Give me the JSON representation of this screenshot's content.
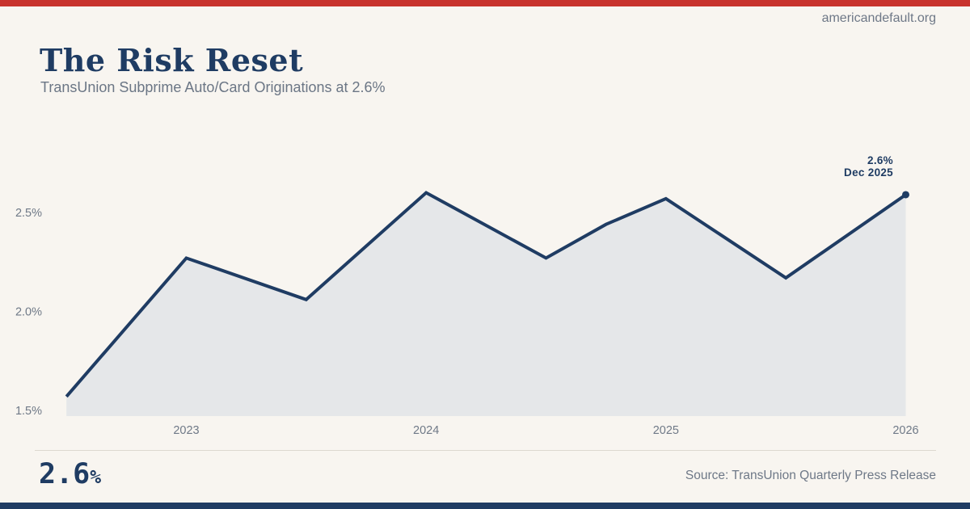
{
  "page": {
    "site_label": "americandefault.org"
  },
  "header": {
    "title": "The Risk Reset",
    "subtitle": "TransUnion Subprime Auto/Card Originations at 2.6%"
  },
  "chart_data": {
    "type": "area",
    "title": "The Risk Reset",
    "series_name": "TransUnion Subprime Auto/Card Originations",
    "x": [
      2022.5,
      2023.0,
      2023.5,
      2024.0,
      2024.5,
      2024.75,
      2025.0,
      2025.5,
      2026.0
    ],
    "values": [
      1.57,
      2.27,
      2.06,
      2.6,
      2.27,
      2.44,
      2.57,
      2.17,
      2.59
    ],
    "xlabel": "",
    "ylabel": "",
    "xticks": [
      {
        "value": 2023,
        "label": "2023"
      },
      {
        "value": 2024,
        "label": "2024"
      },
      {
        "value": 2025,
        "label": "2025"
      },
      {
        "value": 2026,
        "label": "2026"
      }
    ],
    "yticks": [
      {
        "value": 1.5,
        "label": "1.5%"
      },
      {
        "value": 2.0,
        "label": "2.0%"
      },
      {
        "value": 2.5,
        "label": "2.5%"
      }
    ],
    "xlim": [
      2022.5,
      2026.0
    ],
    "ylim": [
      1.45,
      2.8
    ],
    "grid": false,
    "legend": false,
    "annotation": {
      "line1": "2.6%",
      "line2": "Dec 2025"
    },
    "colors": {
      "line": "#1f3c63",
      "fill": "#e5e7e9",
      "accent_red": "#c8332d",
      "navy": "#1f3c63",
      "tick_gray": "#6f7987",
      "background": "#f8f5f0"
    }
  },
  "footer": {
    "stat_value": "2.6",
    "stat_suffix": "%",
    "source": "Source: TransUnion Quarterly Press Release"
  }
}
